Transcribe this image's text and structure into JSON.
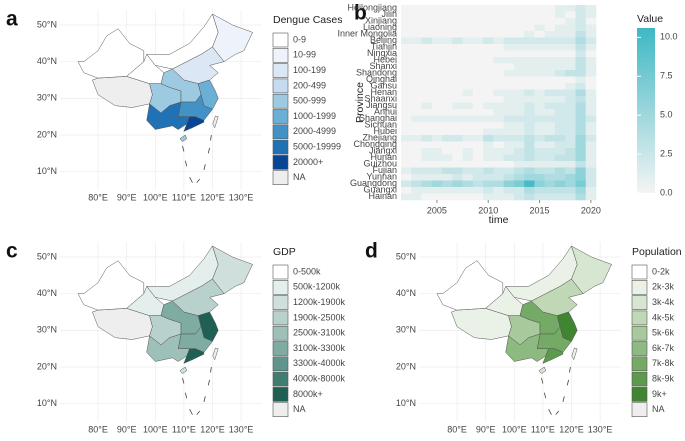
{
  "chart_data": [
    {
      "type": "map",
      "panel": "a",
      "legend_title": "Dengue Cases",
      "legend": [
        {
          "label": "0-9",
          "color": "#ffffff"
        },
        {
          "label": "10-99",
          "color": "#eef3fb"
        },
        {
          "label": "100-199",
          "color": "#dbe7f5"
        },
        {
          "label": "200-499",
          "color": "#c6dbef"
        },
        {
          "label": "500-999",
          "color": "#9ecae1"
        },
        {
          "label": "1000-1999",
          "color": "#6baed6"
        },
        {
          "label": "2000-4999",
          "color": "#4292c6"
        },
        {
          "label": "5000-19999",
          "color": "#2171b5"
        },
        {
          "label": "20000+",
          "color": "#084594"
        },
        {
          "label": "NA",
          "color": "#eeeeee"
        }
      ],
      "xlim": [
        66.7,
        137.3
      ],
      "ylim": [
        5,
        54.1
      ],
      "xticks": [
        {
          "value": 80,
          "label": "80°E"
        },
        {
          "value": 90,
          "label": "90°E"
        },
        {
          "value": 100,
          "label": "100°E"
        },
        {
          "value": 110,
          "label": "110°E"
        },
        {
          "value": 120,
          "label": "120°E"
        },
        {
          "value": 130,
          "label": "130°E"
        }
      ],
      "yticks": [
        {
          "value": 10,
          "label": "10°N"
        },
        {
          "value": 20,
          "label": "20°N"
        },
        {
          "value": 30,
          "label": "30°N"
        },
        {
          "value": 40,
          "label": "40°N"
        },
        {
          "value": 50,
          "label": "50°N"
        }
      ]
    },
    {
      "type": "heatmap",
      "panel": "b",
      "xlabel": "time",
      "ylabel": "Province",
      "colorbar_title": "Value",
      "colors": [
        "#f4f4f4",
        "#3fb8c4"
      ],
      "categories": [
        "Heilongjiang",
        "Jilin",
        "Xinjiang",
        "Liaoning",
        "Inner Mongolia",
        "Beijing",
        "Tianjin",
        "Ningxia",
        "Hebei",
        "Shanxi",
        "Shandong",
        "Qinghai",
        "Gansu",
        "Henan",
        "Shaanxi",
        "Jiangsu",
        "Anhui",
        "Shanghai",
        "Sichuan",
        "Hubei",
        "Zhejiang",
        "Chongqing",
        "Jiangxi",
        "Hunan",
        "Guizhou",
        "Fujian",
        "Yunnan",
        "Guangdong",
        "Guangxi",
        "Hainan"
      ],
      "x": [
        2002,
        2003,
        2004,
        2005,
        2006,
        2007,
        2008,
        2009,
        2010,
        2011,
        2012,
        2013,
        2014,
        2015,
        2016,
        2017,
        2018,
        2019,
        2020
      ],
      "xlim": [
        2001.5,
        2020.5
      ],
      "xticks": [
        2005,
        2010,
        2015,
        2020
      ],
      "clim": [
        0,
        10.6
      ],
      "cticks": [
        {
          "value": 0,
          "label": "0.0"
        },
        {
          "value": 2.5,
          "label": "2.5"
        },
        {
          "value": 5,
          "label": "5.0"
        },
        {
          "value": 7.5,
          "label": "7.5"
        },
        {
          "value": 10,
          "label": "10.0"
        }
      ],
      "z": [
        [
          0,
          0,
          0,
          0,
          0,
          0,
          0,
          0,
          0,
          0,
          0,
          0,
          0,
          0,
          0,
          1,
          1,
          2,
          1
        ],
        [
          0,
          0,
          0,
          0,
          0,
          0,
          0,
          0,
          0,
          0,
          0,
          0,
          0,
          0,
          0,
          1,
          0,
          2,
          1
        ],
        [
          0,
          0,
          0,
          0,
          0,
          0,
          0,
          0,
          0,
          0,
          0,
          0,
          0,
          0,
          0,
          0,
          1,
          2,
          0
        ],
        [
          0,
          0,
          0,
          0,
          0,
          0,
          0,
          0,
          0,
          0,
          0,
          0,
          0,
          1,
          0,
          1,
          1,
          2,
          1
        ],
        [
          0,
          0,
          0,
          0,
          0,
          0,
          0,
          0,
          0,
          0,
          0,
          0,
          1,
          0,
          1,
          1,
          1,
          3,
          1
        ],
        [
          1,
          1,
          2,
          1,
          1,
          2,
          1,
          1,
          2,
          1,
          2,
          2,
          2,
          2,
          2,
          2,
          2,
          4,
          2
        ],
        [
          0,
          0,
          0,
          0,
          0,
          0,
          0,
          0,
          0,
          0,
          1,
          1,
          1,
          1,
          1,
          1,
          1,
          3,
          1
        ],
        [
          0,
          0,
          0,
          0,
          0,
          0,
          0,
          0,
          0,
          0,
          0,
          0,
          0,
          0,
          0,
          0,
          0,
          2,
          0
        ],
        [
          0,
          0,
          0,
          0,
          0,
          0,
          0,
          0,
          0,
          1,
          1,
          1,
          1,
          1,
          1,
          1,
          1,
          3,
          1
        ],
        [
          0,
          0,
          0,
          0,
          0,
          0,
          0,
          0,
          0,
          0,
          0,
          1,
          1,
          1,
          1,
          1,
          1,
          3,
          1
        ],
        [
          0,
          0,
          0,
          0,
          0,
          0,
          0,
          0,
          0,
          0,
          1,
          1,
          1,
          1,
          1,
          2,
          3,
          3,
          1
        ],
        [
          0,
          0,
          0,
          0,
          0,
          0,
          0,
          0,
          0,
          0,
          0,
          0,
          0,
          0,
          0,
          0,
          0,
          1,
          0
        ],
        [
          0,
          0,
          0,
          0,
          0,
          0,
          0,
          0,
          0,
          0,
          0,
          0,
          0,
          0,
          0,
          0,
          1,
          2,
          0
        ],
        [
          0,
          0,
          0,
          0,
          0,
          0,
          1,
          0,
          0,
          1,
          1,
          1,
          2,
          1,
          2,
          2,
          2,
          4,
          1
        ],
        [
          0,
          0,
          0,
          0,
          0,
          0,
          0,
          0,
          0,
          0,
          1,
          1,
          1,
          1,
          1,
          1,
          2,
          3,
          1
        ],
        [
          0,
          0,
          1,
          0,
          0,
          1,
          1,
          0,
          1,
          1,
          1,
          1,
          2,
          1,
          2,
          2,
          2,
          4,
          1
        ],
        [
          0,
          0,
          0,
          0,
          0,
          0,
          0,
          0,
          0,
          1,
          1,
          1,
          2,
          1,
          1,
          2,
          2,
          4,
          1
        ],
        [
          0,
          1,
          1,
          1,
          1,
          1,
          1,
          1,
          1,
          1,
          2,
          2,
          2,
          2,
          2,
          2,
          2,
          4,
          2
        ],
        [
          0,
          0,
          0,
          0,
          0,
          0,
          0,
          0,
          0,
          0,
          1,
          1,
          2,
          1,
          1,
          2,
          2,
          4,
          1
        ],
        [
          0,
          0,
          0,
          0,
          0,
          0,
          0,
          0,
          1,
          1,
          1,
          1,
          2,
          1,
          1,
          2,
          2,
          4,
          1
        ],
        [
          1,
          1,
          2,
          1,
          2,
          2,
          1,
          1,
          3,
          2,
          2,
          2,
          3,
          2,
          3,
          3,
          2,
          5,
          2
        ],
        [
          0,
          0,
          0,
          0,
          0,
          0,
          0,
          0,
          1,
          0,
          1,
          1,
          3,
          1,
          1,
          2,
          2,
          5,
          1
        ],
        [
          0,
          0,
          1,
          1,
          0,
          0,
          1,
          0,
          1,
          1,
          1,
          2,
          3,
          2,
          2,
          2,
          3,
          5,
          1
        ],
        [
          0,
          0,
          1,
          1,
          1,
          0,
          1,
          0,
          1,
          1,
          2,
          2,
          3,
          2,
          2,
          3,
          3,
          5,
          1
        ],
        [
          0,
          0,
          0,
          0,
          0,
          0,
          0,
          0,
          0,
          0,
          0,
          1,
          1,
          1,
          1,
          1,
          1,
          3,
          1
        ],
        [
          1,
          2,
          2,
          2,
          3,
          3,
          2,
          2,
          3,
          2,
          2,
          3,
          4,
          3,
          3,
          4,
          3,
          6,
          2
        ],
        [
          0,
          1,
          1,
          1,
          1,
          2,
          1,
          2,
          2,
          2,
          3,
          4,
          5,
          5,
          4,
          4,
          5,
          6,
          2
        ],
        [
          2,
          3,
          4,
          5,
          4,
          5,
          4,
          3,
          4,
          4,
          6,
          7,
          10,
          6,
          5,
          6,
          5,
          7,
          2
        ],
        [
          0,
          1,
          1,
          1,
          1,
          1,
          1,
          1,
          2,
          1,
          2,
          2,
          4,
          3,
          3,
          3,
          3,
          5,
          1
        ],
        [
          1,
          1,
          0,
          0,
          0,
          0,
          0,
          0,
          1,
          1,
          1,
          2,
          3,
          2,
          2,
          2,
          2,
          4,
          1
        ]
      ]
    },
    {
      "type": "map",
      "panel": "c",
      "legend_title": "GDP",
      "legend": [
        {
          "label": "0-500k",
          "color": "#ffffff"
        },
        {
          "label": "500k-1200k",
          "color": "#e4eeec"
        },
        {
          "label": "1200k-1900k",
          "color": "#cfe0dc"
        },
        {
          "label": "1900k-2500k",
          "color": "#b8d1cc"
        },
        {
          "label": "2500k-3100k",
          "color": "#9dc0b8"
        },
        {
          "label": "3100k-3300k",
          "color": "#7eaba2"
        },
        {
          "label": "3300k-4000k",
          "color": "#5e968b"
        },
        {
          "label": "4000k-8000k",
          "color": "#417e72"
        },
        {
          "label": "8000k+",
          "color": "#205f53"
        },
        {
          "label": "NA",
          "color": "#eeeeee"
        }
      ],
      "xlim": [
        66.7,
        137.3
      ],
      "ylim": [
        5,
        54.1
      ],
      "xticks": [
        {
          "value": 80,
          "label": "80°E"
        },
        {
          "value": 90,
          "label": "90°E"
        },
        {
          "value": 100,
          "label": "100°E"
        },
        {
          "value": 110,
          "label": "110°E"
        },
        {
          "value": 120,
          "label": "120°E"
        },
        {
          "value": 130,
          "label": "130°E"
        }
      ],
      "yticks": [
        {
          "value": 10,
          "label": "10°N"
        },
        {
          "value": 20,
          "label": "20°N"
        },
        {
          "value": 30,
          "label": "30°N"
        },
        {
          "value": 40,
          "label": "40°N"
        },
        {
          "value": 50,
          "label": "50°N"
        }
      ]
    },
    {
      "type": "map",
      "panel": "d",
      "legend_title": "Population",
      "legend": [
        {
          "label": "0-2k",
          "color": "#ffffff"
        },
        {
          "label": "2k-3k",
          "color": "#eaf1e6"
        },
        {
          "label": "3k-4k",
          "color": "#d7e6d0"
        },
        {
          "label": "4k-5k",
          "color": "#c0d8b6"
        },
        {
          "label": "5k-6k",
          "color": "#a8c99b"
        },
        {
          "label": "6k-7k",
          "color": "#8dba80"
        },
        {
          "label": "7k-8k",
          "color": "#74aa65"
        },
        {
          "label": "8k-9k",
          "color": "#5c9a4c"
        },
        {
          "label": "9k+",
          "color": "#3f8532"
        },
        {
          "label": "NA",
          "color": "#eeeeee"
        }
      ],
      "xlim": [
        66.7,
        137.3
      ],
      "ylim": [
        5,
        54.1
      ],
      "xticks": [
        {
          "value": 80,
          "label": "80°E"
        },
        {
          "value": 90,
          "label": "90°E"
        },
        {
          "value": 100,
          "label": "100°E"
        },
        {
          "value": 110,
          "label": "110°E"
        },
        {
          "value": 120,
          "label": "120°E"
        },
        {
          "value": 130,
          "label": "130°E"
        }
      ],
      "yticks": [
        {
          "value": 10,
          "label": "10°N"
        },
        {
          "value": 20,
          "label": "20°N"
        },
        {
          "value": 30,
          "label": "30°N"
        },
        {
          "value": 40,
          "label": "40°N"
        },
        {
          "value": 50,
          "label": "50°N"
        }
      ]
    }
  ]
}
